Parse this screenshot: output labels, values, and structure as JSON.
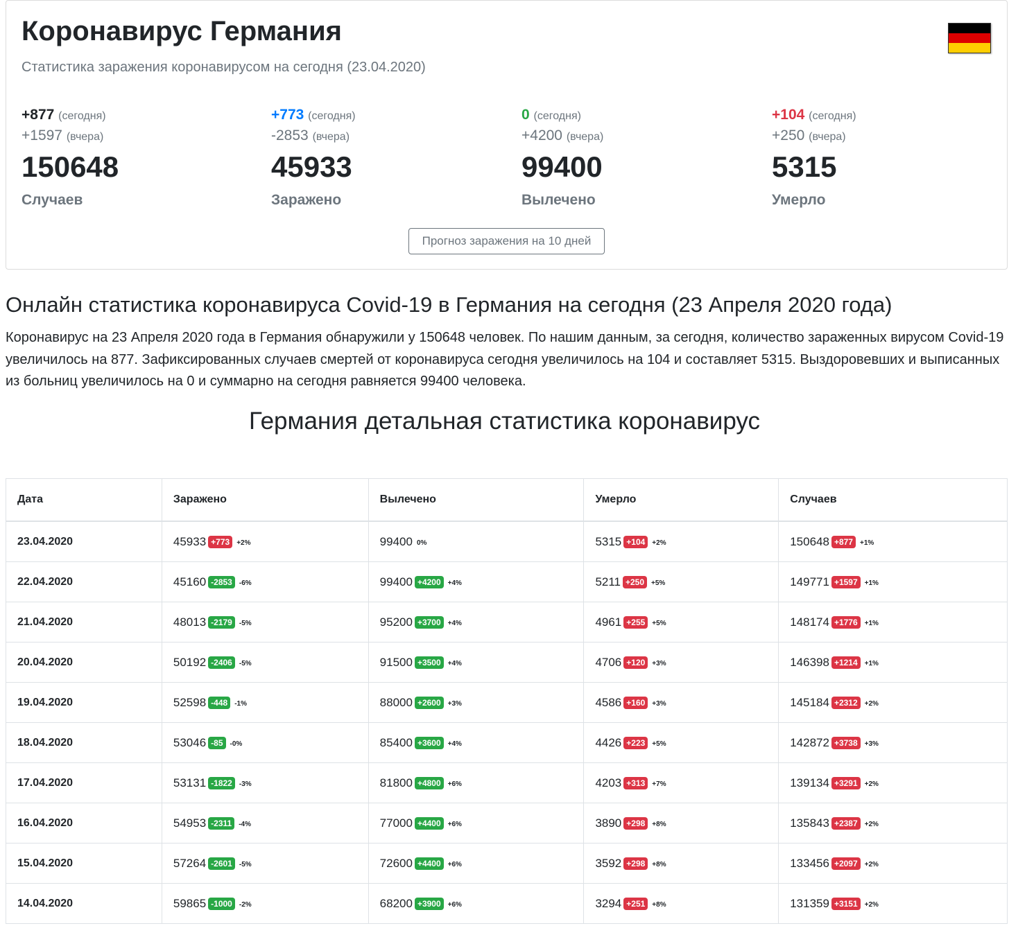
{
  "header": {
    "title": "Коронавирус Германия",
    "subtitle": "Статистика заражения коронавирусом на сегодня (23.04.2020)"
  },
  "flag": {
    "colors": [
      "#000000",
      "#dd0000",
      "#ffce00"
    ],
    "icon": "germany-flag-icon"
  },
  "stats": [
    {
      "today": "+877",
      "today_label": "(сегодня)",
      "today_color": "#212529",
      "yesterday": "+1597",
      "yesterday_label": "(вчера)",
      "total": "150648",
      "label": "Случаев"
    },
    {
      "today": "+773",
      "today_label": "(сегодня)",
      "today_color": "#007bff",
      "yesterday": "-2853",
      "yesterday_label": "(вчера)",
      "total": "45933",
      "label": "Заражено"
    },
    {
      "today": "0",
      "today_label": "(сегодня)",
      "today_color": "#28a745",
      "yesterday": "+4200",
      "yesterday_label": "(вчера)",
      "total": "99400",
      "label": "Вылечено"
    },
    {
      "today": "+104",
      "today_label": "(сегодня)",
      "today_color": "#dc3545",
      "yesterday": "+250",
      "yesterday_label": "(вчера)",
      "total": "5315",
      "label": "Умерло"
    }
  ],
  "forecast_button": "Прогноз заражения на 10 дней",
  "article": {
    "heading": "Онлайн статистика коронавируса Covid-19 в Германия на сегодня (23 Апреля 2020 года)",
    "text": "Коронавирус на 23 Апреля 2020 года в Германия обнаружили у 150648 человек. По нашим данным, за сегодня, количество зараженных вирусом Covid-19 увеличилось на 877. Зафиксированных случаев смертей от коронавируса сегодня увеличилось на 104 и составляет 5315. Выздоровевших и выписанных из больниц увеличилось на 0 и суммарно на сегодня равняется 99400 человека."
  },
  "table": {
    "heading": "Германия детальная статистика коронавирус",
    "columns": [
      "Дата",
      "Заражено",
      "Вылечено",
      "Умерло",
      "Случаев"
    ],
    "rows": [
      {
        "date": "23.04.2020",
        "inf": "45933",
        "inf_d": "+773",
        "inf_c": "red",
        "inf_p": "+2%",
        "rec": "99400",
        "rec_d": "",
        "rec_c": "",
        "rec_p": "0%",
        "dth": "5315",
        "dth_d": "+104",
        "dth_p": "+2%",
        "cas": "150648",
        "cas_d": "+877",
        "cas_p": "+1%"
      },
      {
        "date": "22.04.2020",
        "inf": "45160",
        "inf_d": "-2853",
        "inf_c": "green",
        "inf_p": "-6%",
        "rec": "99400",
        "rec_d": "+4200",
        "rec_c": "green",
        "rec_p": "+4%",
        "dth": "5211",
        "dth_d": "+250",
        "dth_p": "+5%",
        "cas": "149771",
        "cas_d": "+1597",
        "cas_p": "+1%"
      },
      {
        "date": "21.04.2020",
        "inf": "48013",
        "inf_d": "-2179",
        "inf_c": "green",
        "inf_p": "-5%",
        "rec": "95200",
        "rec_d": "+3700",
        "rec_c": "green",
        "rec_p": "+4%",
        "dth": "4961",
        "dth_d": "+255",
        "dth_p": "+5%",
        "cas": "148174",
        "cas_d": "+1776",
        "cas_p": "+1%"
      },
      {
        "date": "20.04.2020",
        "inf": "50192",
        "inf_d": "-2406",
        "inf_c": "green",
        "inf_p": "-5%",
        "rec": "91500",
        "rec_d": "+3500",
        "rec_c": "green",
        "rec_p": "+4%",
        "dth": "4706",
        "dth_d": "+120",
        "dth_p": "+3%",
        "cas": "146398",
        "cas_d": "+1214",
        "cas_p": "+1%"
      },
      {
        "date": "19.04.2020",
        "inf": "52598",
        "inf_d": "-448",
        "inf_c": "green",
        "inf_p": "-1%",
        "rec": "88000",
        "rec_d": "+2600",
        "rec_c": "green",
        "rec_p": "+3%",
        "dth": "4586",
        "dth_d": "+160",
        "dth_p": "+3%",
        "cas": "145184",
        "cas_d": "+2312",
        "cas_p": "+2%"
      },
      {
        "date": "18.04.2020",
        "inf": "53046",
        "inf_d": "-85",
        "inf_c": "green",
        "inf_p": "-0%",
        "rec": "85400",
        "rec_d": "+3600",
        "rec_c": "green",
        "rec_p": "+4%",
        "dth": "4426",
        "dth_d": "+223",
        "dth_p": "+5%",
        "cas": "142872",
        "cas_d": "+3738",
        "cas_p": "+3%"
      },
      {
        "date": "17.04.2020",
        "inf": "53131",
        "inf_d": "-1822",
        "inf_c": "green",
        "inf_p": "-3%",
        "rec": "81800",
        "rec_d": "+4800",
        "rec_c": "green",
        "rec_p": "+6%",
        "dth": "4203",
        "dth_d": "+313",
        "dth_p": "+7%",
        "cas": "139134",
        "cas_d": "+3291",
        "cas_p": "+2%"
      },
      {
        "date": "16.04.2020",
        "inf": "54953",
        "inf_d": "-2311",
        "inf_c": "green",
        "inf_p": "-4%",
        "rec": "77000",
        "rec_d": "+4400",
        "rec_c": "green",
        "rec_p": "+6%",
        "dth": "3890",
        "dth_d": "+298",
        "dth_p": "+8%",
        "cas": "135843",
        "cas_d": "+2387",
        "cas_p": "+2%"
      },
      {
        "date": "15.04.2020",
        "inf": "57264",
        "inf_d": "-2601",
        "inf_c": "green",
        "inf_p": "-5%",
        "rec": "72600",
        "rec_d": "+4400",
        "rec_c": "green",
        "rec_p": "+6%",
        "dth": "3592",
        "dth_d": "+298",
        "dth_p": "+8%",
        "cas": "133456",
        "cas_d": "+2097",
        "cas_p": "+2%"
      },
      {
        "date": "14.04.2020",
        "inf": "59865",
        "inf_d": "-1000",
        "inf_c": "green",
        "inf_p": "-2%",
        "rec": "68200",
        "rec_d": "+3900",
        "rec_c": "green",
        "rec_p": "+6%",
        "dth": "3294",
        "dth_d": "+251",
        "dth_p": "+8%",
        "cas": "131359",
        "cas_d": "+3151",
        "cas_p": "+2%"
      }
    ]
  }
}
